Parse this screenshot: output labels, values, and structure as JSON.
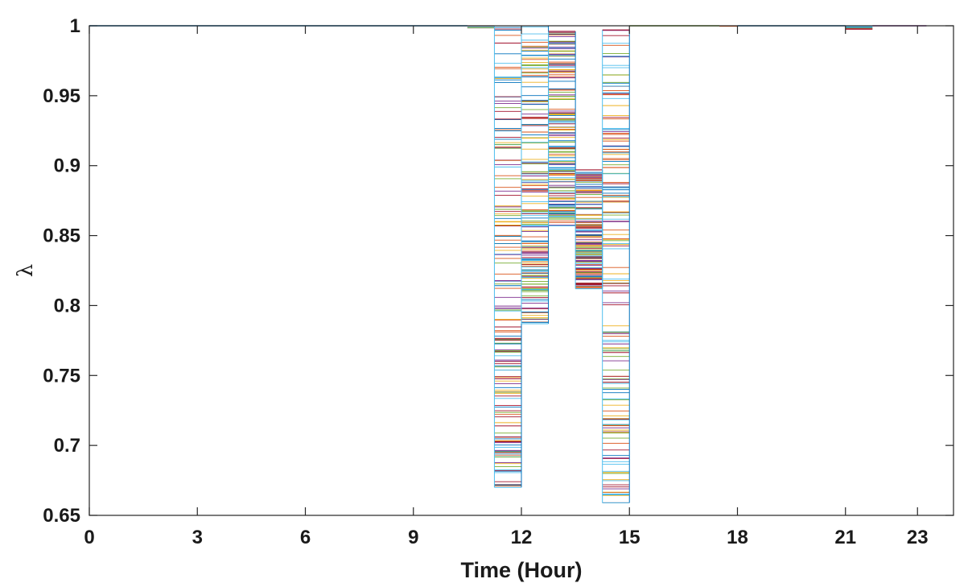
{
  "chart_data": {
    "type": "line",
    "title": "",
    "xlabel": "Time (Hour)",
    "ylabel": "λ",
    "xlim": [
      0,
      24
    ],
    "ylim": [
      0.65,
      1.0
    ],
    "x_ticks": [
      0,
      3,
      6,
      9,
      12,
      15,
      18,
      21,
      23
    ],
    "x_tick_labels": [
      "0",
      "3",
      "6",
      "9",
      "12",
      "15",
      "18",
      "21",
      "23"
    ],
    "y_ticks": [
      0.65,
      0.7,
      0.75,
      0.8,
      0.85,
      0.9,
      0.95,
      1.0
    ],
    "y_tick_labels": [
      "0.65",
      "0.7",
      "0.75",
      "0.8",
      "0.85",
      "0.9",
      "0.95",
      "1"
    ],
    "grid": false,
    "legend": "none",
    "step_plot": true,
    "series_colors": [
      "#0072BD",
      "#D95319",
      "#EDB120",
      "#7E2F8E",
      "#77AC30",
      "#4DBEEE",
      "#A2142F"
    ],
    "baseline_value": 1.0,
    "hour_bins": [
      {
        "hour_start": 10.5,
        "hour_end": 11.25,
        "min": 0.998,
        "max": 1.0
      },
      {
        "hour_start": 11.25,
        "hour_end": 12.0,
        "min": 0.67,
        "max": 1.0
      },
      {
        "hour_start": 12.0,
        "hour_end": 12.75,
        "min": 0.787,
        "max": 1.0
      },
      {
        "hour_start": 12.75,
        "hour_end": 13.5,
        "min": 0.857,
        "max": 0.996
      },
      {
        "hour_start": 13.5,
        "hour_end": 14.25,
        "min": 0.812,
        "max": 0.897
      },
      {
        "hour_start": 14.25,
        "hour_end": 15.0,
        "min": 0.659,
        "max": 0.997
      },
      {
        "hour_start": 17.5,
        "hour_end": 18.0,
        "min": 0.9995,
        "max": 1.0
      },
      {
        "hour_start": 21.0,
        "hour_end": 21.75,
        "min": 0.997,
        "max": 1.0
      }
    ]
  }
}
